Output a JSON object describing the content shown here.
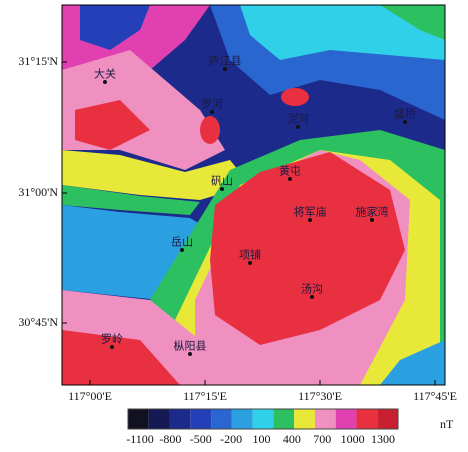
{
  "map": {
    "x_ticks": [
      "117°00'E",
      "117°15'E",
      "117°30'E",
      "117°45'E"
    ],
    "y_ticks": [
      "31°15'N",
      "31°00'N",
      "30°45'N"
    ],
    "places": [
      "大关",
      "庐江县",
      "罗河",
      "泥河",
      "盛桥",
      "矾山",
      "黄屯",
      "将军庙",
      "施家湾",
      "岳山",
      "项铺",
      "汤沟",
      "罗岭",
      "枞阳县"
    ]
  },
  "colorbar": {
    "unit": "nT",
    "ticks": [
      -1100,
      -800,
      -500,
      -200,
      100,
      400,
      700,
      1000,
      1300
    ],
    "colors": [
      "#111122",
      "#151a55",
      "#1c2a8c",
      "#2340b8",
      "#2a66d0",
      "#2aa0e0",
      "#30d0e8",
      "#2cc060",
      "#e8e838",
      "#f090c0",
      "#e040b0",
      "#e83040",
      "#c82030"
    ]
  }
}
